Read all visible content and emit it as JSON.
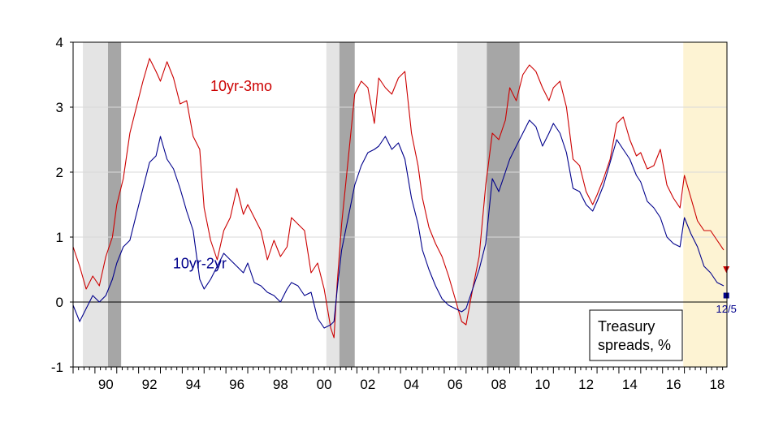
{
  "chart_data": {
    "type": "line",
    "title": "",
    "xlabel": "",
    "ylabel": "",
    "xlim": [
      1989.0,
      2018.95
    ],
    "ylim": [
      -1,
      4
    ],
    "x_ticks": [
      "90",
      "92",
      "94",
      "96",
      "98",
      "00",
      "02",
      "04",
      "06",
      "08",
      "10",
      "12",
      "14",
      "16",
      "18"
    ],
    "x_tick_years": [
      1990,
      1992,
      1994,
      1996,
      1998,
      2000,
      2002,
      2004,
      2006,
      2008,
      2010,
      2012,
      2014,
      2016,
      2018
    ],
    "y_ticks": [
      "-1",
      "0",
      "1",
      "2",
      "3",
      "4"
    ],
    "y_tick_values": [
      -1,
      0,
      1,
      2,
      3,
      4
    ],
    "grid": "horizontal",
    "legend_box": {
      "lines": [
        "Treasury",
        "spreads, %"
      ],
      "placement": "bottom-right"
    },
    "shaded_regions": [
      {
        "start": 1989.45,
        "end": 1990.6,
        "kind": "light"
      },
      {
        "start": 1990.6,
        "end": 1991.2,
        "kind": "recession"
      },
      {
        "start": 2000.6,
        "end": 2001.2,
        "kind": "light"
      },
      {
        "start": 2001.2,
        "end": 2001.9,
        "kind": "recession"
      },
      {
        "start": 2006.6,
        "end": 2007.95,
        "kind": "light"
      },
      {
        "start": 2007.95,
        "end": 2009.45,
        "kind": "recession"
      },
      {
        "start": 2016.95,
        "end": 2018.95,
        "kind": "highlight"
      }
    ],
    "colors": {
      "light": "#e4e4e4",
      "recession": "#a6a6a6",
      "highlight": "#fdf3d3",
      "grid": "#d9d9d9"
    },
    "series": [
      {
        "name": "10yr-3mo",
        "color": "#cc0000",
        "x": [
          1989.0,
          1989.3,
          1989.6,
          1989.9,
          1990.2,
          1990.5,
          1990.8,
          1991.0,
          1991.3,
          1991.6,
          1991.9,
          1992.2,
          1992.5,
          1992.8,
          1993.0,
          1993.3,
          1993.6,
          1993.9,
          1994.2,
          1994.5,
          1994.8,
          1995.0,
          1995.3,
          1995.6,
          1995.9,
          1996.2,
          1996.5,
          1996.8,
          1997.0,
          1997.3,
          1997.6,
          1997.9,
          1998.2,
          1998.5,
          1998.8,
          1999.0,
          1999.3,
          1999.6,
          1999.9,
          2000.2,
          2000.5,
          2000.8,
          2000.95,
          2001.1,
          2001.3,
          2001.6,
          2001.9,
          2002.2,
          2002.5,
          2002.8,
          2003.0,
          2003.3,
          2003.6,
          2003.9,
          2004.2,
          2004.5,
          2004.8,
          2005.0,
          2005.3,
          2005.6,
          2005.9,
          2006.2,
          2006.5,
          2006.8,
          2007.0,
          2007.3,
          2007.6,
          2007.9,
          2008.2,
          2008.5,
          2008.8,
          2009.0,
          2009.3,
          2009.6,
          2009.9,
          2010.2,
          2010.5,
          2010.8,
          2011.0,
          2011.3,
          2011.6,
          2011.9,
          2012.2,
          2012.5,
          2012.8,
          2013.0,
          2013.3,
          2013.6,
          2013.9,
          2014.2,
          2014.5,
          2014.8,
          2015.0,
          2015.3,
          2015.6,
          2015.9,
          2016.2,
          2016.5,
          2016.8,
          2017.0,
          2017.3,
          2017.6,
          2017.9,
          2018.2,
          2018.5,
          2018.8
        ],
        "values": [
          0.85,
          0.55,
          0.2,
          0.4,
          0.25,
          0.7,
          1.0,
          1.5,
          1.9,
          2.6,
          3.0,
          3.4,
          3.75,
          3.55,
          3.4,
          3.7,
          3.45,
          3.05,
          3.1,
          2.55,
          2.35,
          1.45,
          0.95,
          0.65,
          1.1,
          1.3,
          1.75,
          1.35,
          1.5,
          1.3,
          1.1,
          0.65,
          0.95,
          0.7,
          0.85,
          1.3,
          1.2,
          1.1,
          0.45,
          0.6,
          0.2,
          -0.4,
          -0.55,
          0.3,
          1.2,
          2.2,
          3.2,
          3.4,
          3.3,
          2.75,
          3.45,
          3.3,
          3.2,
          3.45,
          3.55,
          2.6,
          2.1,
          1.6,
          1.15,
          0.9,
          0.7,
          0.4,
          0.05,
          -0.3,
          -0.35,
          0.2,
          0.7,
          1.8,
          2.6,
          2.5,
          2.8,
          3.3,
          3.1,
          3.5,
          3.65,
          3.55,
          3.3,
          3.1,
          3.3,
          3.4,
          3.0,
          2.2,
          2.1,
          1.7,
          1.5,
          1.65,
          1.9,
          2.2,
          2.75,
          2.85,
          2.5,
          2.25,
          2.3,
          2.05,
          2.1,
          2.35,
          1.8,
          1.6,
          1.45,
          1.95,
          1.6,
          1.25,
          1.1,
          1.1,
          0.95,
          0.8
        ]
      },
      {
        "name": "10yr-2yr",
        "color": "#00008b",
        "x": [
          1989.0,
          1989.3,
          1989.6,
          1989.9,
          1990.2,
          1990.5,
          1990.8,
          1991.0,
          1991.3,
          1991.6,
          1991.9,
          1992.2,
          1992.5,
          1992.8,
          1993.0,
          1993.3,
          1993.6,
          1993.9,
          1994.2,
          1994.5,
          1994.8,
          1995.0,
          1995.3,
          1995.6,
          1995.9,
          1996.2,
          1996.5,
          1996.8,
          1997.0,
          1997.3,
          1997.6,
          1997.9,
          1998.2,
          1998.5,
          1998.8,
          1999.0,
          1999.3,
          1999.6,
          1999.9,
          2000.2,
          2000.5,
          2000.8,
          2000.95,
          2001.1,
          2001.3,
          2001.6,
          2001.9,
          2002.2,
          2002.5,
          2002.8,
          2003.0,
          2003.3,
          2003.6,
          2003.9,
          2004.2,
          2004.5,
          2004.8,
          2005.0,
          2005.3,
          2005.6,
          2005.9,
          2006.2,
          2006.5,
          2006.8,
          2007.0,
          2007.3,
          2007.6,
          2007.9,
          2008.2,
          2008.5,
          2008.8,
          2009.0,
          2009.3,
          2009.6,
          2009.9,
          2010.2,
          2010.5,
          2010.8,
          2011.0,
          2011.3,
          2011.6,
          2011.9,
          2012.2,
          2012.5,
          2012.8,
          2013.0,
          2013.3,
          2013.6,
          2013.9,
          2014.2,
          2014.5,
          2014.8,
          2015.0,
          2015.3,
          2015.6,
          2015.9,
          2016.2,
          2016.5,
          2016.8,
          2017.0,
          2017.3,
          2017.6,
          2017.9,
          2018.2,
          2018.5,
          2018.8
        ],
        "values": [
          -0.05,
          -0.3,
          -0.1,
          0.1,
          0.0,
          0.1,
          0.35,
          0.6,
          0.85,
          0.95,
          1.35,
          1.75,
          2.15,
          2.25,
          2.55,
          2.2,
          2.05,
          1.75,
          1.4,
          1.1,
          0.35,
          0.2,
          0.35,
          0.55,
          0.75,
          0.65,
          0.55,
          0.45,
          0.6,
          0.3,
          0.25,
          0.15,
          0.1,
          0.0,
          0.2,
          0.3,
          0.25,
          0.1,
          0.15,
          -0.25,
          -0.4,
          -0.35,
          -0.3,
          0.2,
          0.8,
          1.3,
          1.8,
          2.1,
          2.3,
          2.35,
          2.4,
          2.55,
          2.35,
          2.45,
          2.2,
          1.6,
          1.2,
          0.8,
          0.5,
          0.25,
          0.05,
          -0.05,
          -0.1,
          -0.15,
          -0.1,
          0.2,
          0.5,
          0.9,
          1.9,
          1.7,
          2.0,
          2.2,
          2.4,
          2.6,
          2.8,
          2.7,
          2.4,
          2.6,
          2.75,
          2.6,
          2.3,
          1.75,
          1.7,
          1.5,
          1.4,
          1.55,
          1.8,
          2.15,
          2.5,
          2.35,
          2.2,
          1.95,
          1.85,
          1.55,
          1.45,
          1.3,
          1.0,
          0.9,
          0.85,
          1.3,
          1.05,
          0.85,
          0.55,
          0.45,
          0.3,
          0.25
        ]
      }
    ],
    "series_labels": [
      {
        "text": "10yr-3mo",
        "color": "#cc0000",
        "x": 1996.7,
        "y": 3.25
      },
      {
        "text": "10yr-2yr",
        "color": "#00008b",
        "x": 1994.8,
        "y": 0.52
      }
    ],
    "point_markers": [
      {
        "series": "10yr-3mo",
        "x": 2018.92,
        "y": 0.5,
        "shape": "triangle-down",
        "color": "#cc0000"
      },
      {
        "series": "10yr-2yr",
        "x": 2018.92,
        "y": 0.1,
        "shape": "square",
        "color": "#00008b"
      }
    ],
    "annotations": [
      {
        "text": "12/5",
        "x": 2018.92,
        "y": -0.1,
        "color": "#00008b"
      }
    ]
  }
}
